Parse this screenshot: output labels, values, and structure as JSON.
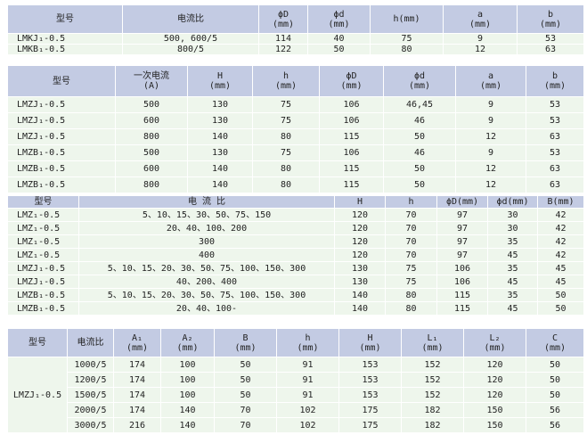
{
  "colors": {
    "header_bg": "#c3cbe3",
    "row_bg": "#eef6ec"
  },
  "table1": {
    "headers": [
      "型号",
      "电流比",
      "ϕD\n(mm)",
      "ϕd\n(mm)",
      "h(mm)",
      "a\n(mm)",
      "b\n(mm)"
    ],
    "rows": [
      [
        "LMKJ₁-0.5",
        "500, 600/5",
        "114",
        "40",
        "75",
        "9",
        "53"
      ],
      [
        "LMKB₁-0.5",
        "800/5",
        "122",
        "50",
        "80",
        "12",
        "63"
      ]
    ]
  },
  "table2": {
    "headers": [
      "型号",
      "一次电流\n(A)",
      "H\n(mm)",
      "h\n(mm)",
      "ϕD\n(mm)",
      "ϕd\n(mm)",
      "a\n(mm)",
      "b\n(mm)"
    ],
    "rows": [
      [
        "LMZJ₁-0.5",
        "500",
        "130",
        "75",
        "106",
        "46,45",
        "9",
        "53"
      ],
      [
        "LMZJ₁-0.5",
        "600",
        "130",
        "75",
        "106",
        "46",
        "9",
        "53"
      ],
      [
        "LMZJ₁-0.5",
        "800",
        "140",
        "80",
        "115",
        "50",
        "12",
        "63"
      ],
      [
        "LMZB₁-0.5",
        "500",
        "130",
        "75",
        "106",
        "46",
        "9",
        "53"
      ],
      [
        "LMZB₁-0.5",
        "600",
        "140",
        "80",
        "115",
        "50",
        "12",
        "63"
      ],
      [
        "LMZB₁-0.5",
        "800",
        "140",
        "80",
        "115",
        "50",
        "12",
        "63"
      ]
    ]
  },
  "table3": {
    "headers": [
      "型号",
      "电 流 比",
      "H",
      "h",
      "ϕD(mm)",
      "ϕd(mm)",
      "B(mm)"
    ],
    "rows": [
      [
        "LMZ₁-0.5",
        "5、10、15、30、50、75、150",
        "120",
        "70",
        "97",
        "30",
        "42"
      ],
      [
        "LMZ₁-0.5",
        "20、40、100、200",
        "120",
        "70",
        "97",
        "30",
        "42"
      ],
      [
        "LMZ₁-0.5",
        "300",
        "120",
        "70",
        "97",
        "35",
        "42"
      ],
      [
        "LMZ₁-0.5",
        "400",
        "120",
        "70",
        "97",
        "45",
        "42"
      ],
      [
        "LMZJ₁-0.5",
        "5、10、15、20、30、50、75、100、150、300",
        "130",
        "75",
        "106",
        "35",
        "45"
      ],
      [
        "LMZJ₁-0.5",
        "40、200、400",
        "130",
        "75",
        "106",
        "45",
        "45"
      ],
      [
        "LMZB₁-0.5",
        "5、10、15、20、30、50、75、100、150、300",
        "140",
        "80",
        "115",
        "35",
        "50"
      ],
      [
        "LMZB₁-0.5",
        "20、40、100-",
        "140",
        "80",
        "115",
        "45",
        "50"
      ]
    ]
  },
  "table4": {
    "headers": [
      "型号",
      "电流比",
      "A₁\n(mm)",
      "A₂\n(mm)",
      "B\n(mm)",
      "h\n(mm)",
      "H\n(mm)",
      "L₁\n(mm)",
      "L₂\n(mm)",
      "C\n(mm)"
    ],
    "model": "LMZJ₁-0.5",
    "rows": [
      [
        "1000/5",
        "174",
        "100",
        "50",
        "91",
        "153",
        "152",
        "120",
        "50"
      ],
      [
        "1200/5",
        "174",
        "100",
        "50",
        "91",
        "153",
        "152",
        "120",
        "50"
      ],
      [
        "1500/5",
        "174",
        "100",
        "50",
        "91",
        "153",
        "152",
        "120",
        "50"
      ],
      [
        "2000/5",
        "174",
        "140",
        "70",
        "102",
        "175",
        "182",
        "150",
        "56"
      ],
      [
        "3000/5",
        "216",
        "140",
        "70",
        "102",
        "175",
        "182",
        "150",
        "56"
      ]
    ]
  }
}
